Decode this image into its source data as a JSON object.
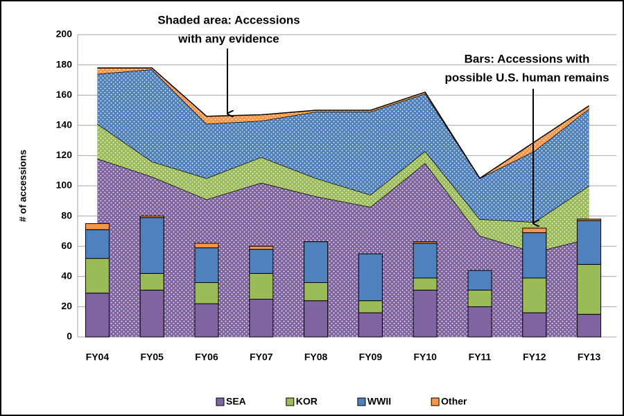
{
  "chart_data": {
    "type": "stacked-bar-area",
    "y_label": "# of accessions",
    "categories": [
      "FY04",
      "FY05",
      "FY06",
      "FY07",
      "FY08",
      "FY09",
      "FY10",
      "FY11",
      "FY12",
      "FY13"
    ],
    "series": [
      {
        "name": "SEA",
        "color": "#8064a2",
        "values": [
          29,
          31,
          22,
          25,
          24,
          16,
          31,
          20,
          16,
          15
        ],
        "area_values": [
          118,
          106,
          91,
          102,
          93,
          86,
          115,
          67,
          56,
          65
        ]
      },
      {
        "name": "KOR",
        "color": "#9bbb59",
        "values": [
          23,
          11,
          14,
          17,
          12,
          8,
          8,
          11,
          23,
          33
        ],
        "area_values": [
          23,
          10,
          14,
          17,
          12,
          8,
          8,
          11,
          20,
          35
        ]
      },
      {
        "name": "WWII",
        "color": "#4f81bd",
        "values": [
          19,
          37,
          23,
          16,
          27,
          31,
          23,
          13,
          30,
          29
        ],
        "area_values": [
          33,
          61,
          36,
          24,
          44,
          55,
          38,
          27,
          47,
          51
        ]
      },
      {
        "name": "Other",
        "color": "#f79646",
        "values": [
          4,
          1,
          3,
          2,
          0,
          0,
          1,
          0,
          3,
          1
        ],
        "area_values": [
          4,
          1,
          5,
          4,
          1,
          1,
          1,
          0,
          6,
          2
        ]
      }
    ],
    "annotations": [
      {
        "lines": [
          "Shaded area: Accessions",
          "with any evidence"
        ]
      },
      {
        "lines": [
          "Bars: Accessions with",
          "possible U.S. human remains"
        ]
      }
    ],
    "ylim": [
      0,
      200
    ],
    "yticks": [
      0,
      20,
      40,
      60,
      80,
      100,
      120,
      140,
      160,
      180,
      200
    ],
    "grid": true,
    "legend": "bottom"
  }
}
